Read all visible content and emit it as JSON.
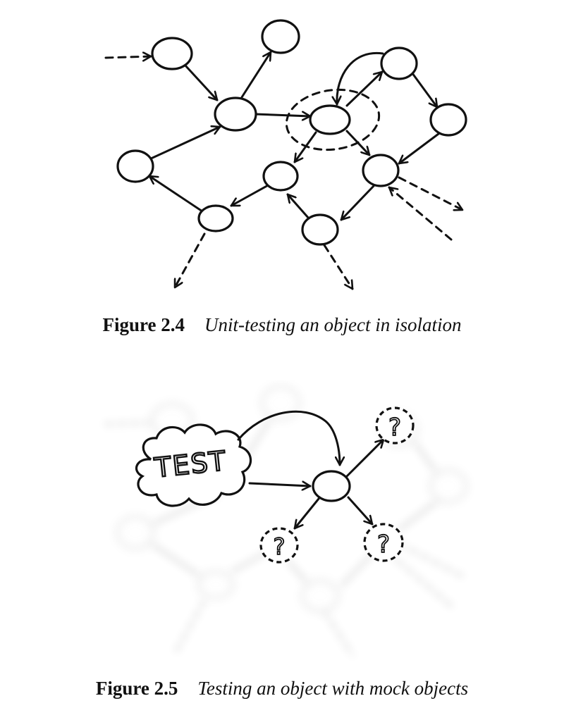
{
  "figures": [
    {
      "id": "fig-2-4",
      "number": "Figure 2.4",
      "caption": "Unit-testing an object in isolation"
    },
    {
      "id": "fig-2-5",
      "number": "Figure 2.5",
      "caption": "Testing an object with mock objects",
      "test_label": "TEST",
      "mock_label": "?"
    }
  ]
}
